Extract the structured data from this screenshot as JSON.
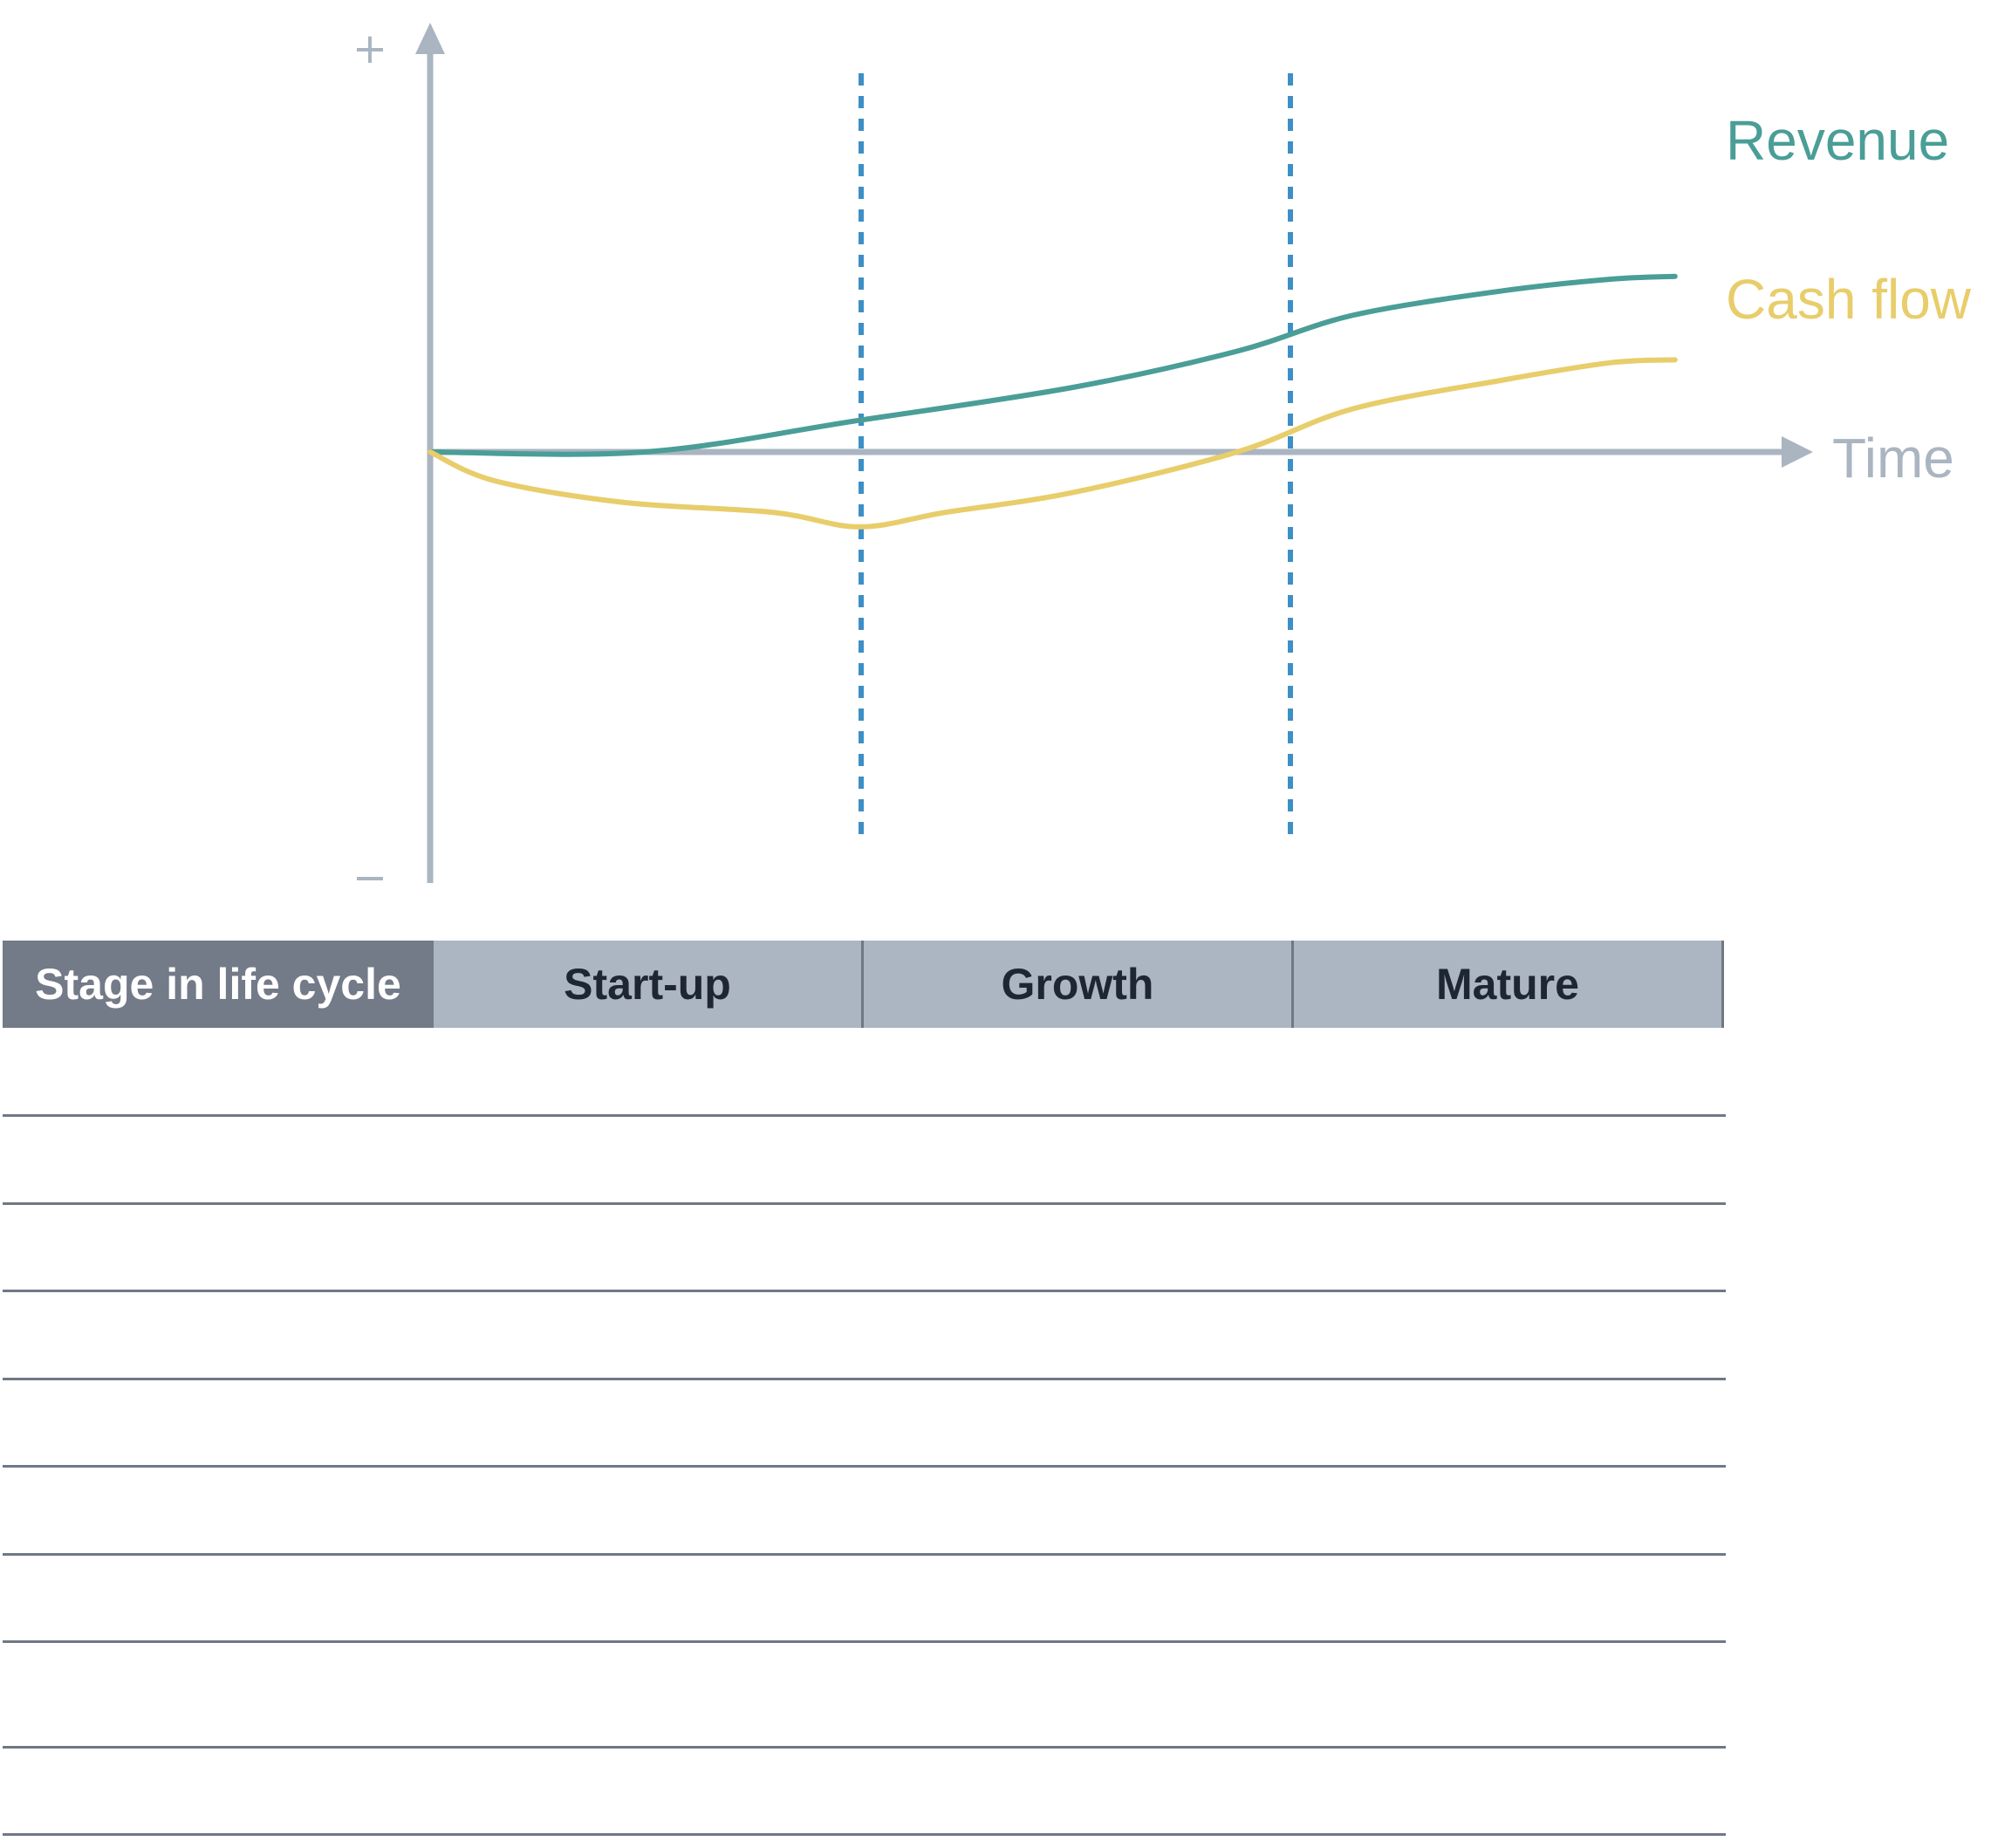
{
  "chart_data": {
    "type": "line",
    "x_axis_label": "Time",
    "y_axis_plus": "+",
    "y_axis_minus": "−",
    "stage_dividers": [
      "Start-up|Growth",
      "Growth|Mature"
    ],
    "series": [
      {
        "name": "Revenue",
        "color": "#4a9e97",
        "points": [
          [
            0,
            0
          ],
          [
            0.5,
            0
          ],
          [
            1.0,
            0.22
          ],
          [
            1.5,
            0.45
          ],
          [
            1.88,
            0.7
          ],
          [
            2.15,
            0.95
          ],
          [
            2.5,
            1.12
          ],
          [
            2.75,
            1.2
          ],
          [
            2.9,
            1.22
          ]
        ]
      },
      {
        "name": "Cash flow",
        "color": "#e8cd6b",
        "points": [
          [
            0,
            0
          ],
          [
            0.15,
            -0.2
          ],
          [
            0.45,
            -0.35
          ],
          [
            0.8,
            -0.42
          ],
          [
            1.0,
            -0.52
          ],
          [
            1.2,
            -0.42
          ],
          [
            1.5,
            -0.28
          ],
          [
            1.88,
            0
          ],
          [
            2.15,
            0.3
          ],
          [
            2.5,
            0.5
          ],
          [
            2.75,
            0.62
          ],
          [
            2.9,
            0.64
          ]
        ]
      }
    ]
  },
  "table": {
    "header_label": "Stage in life cycle",
    "stages": [
      "Start-up",
      "Growth",
      "Mature"
    ],
    "row_count": 9
  },
  "colors": {
    "axis": "#aab5c1",
    "divider": "#3d8fc6",
    "header_dark": "#737a88",
    "header_light": "#abb6c2",
    "rule": "#6f7885"
  }
}
